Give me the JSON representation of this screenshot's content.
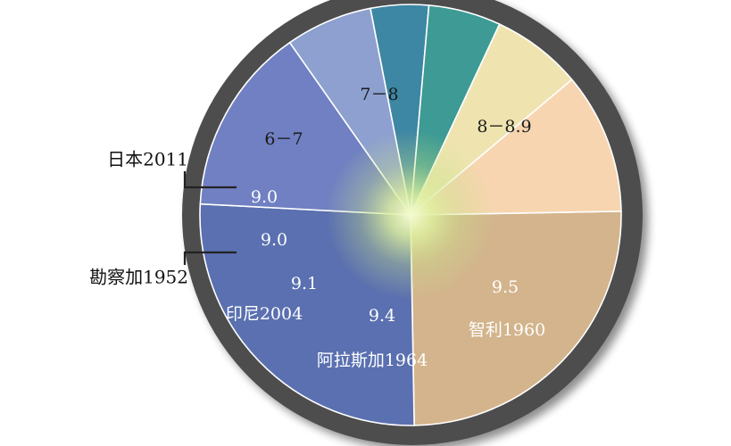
{
  "chart_data": {
    "type": "pie",
    "title": "",
    "slices": [
      {
        "label": "8－8.9",
        "value": 90,
        "color": "#d3b48c",
        "text_color": "dark"
      },
      {
        "label": "9.5",
        "sub_label": "智利1960",
        "value": 94,
        "color": "#5a6fb0",
        "text_color": "white"
      },
      {
        "label": "9.4",
        "sub_label": "阿拉斯加1964",
        "value": 52,
        "color": "#6f80c2",
        "text_color": "white"
      },
      {
        "label": "9.1",
        "sub_label": "印尼2004",
        "value": 24,
        "color": "#8da0cf",
        "text_color": "white"
      },
      {
        "label": "9.0",
        "outside_label": "勘察加1952",
        "value": 16,
        "color": "#3e86a4",
        "text_color": "white"
      },
      {
        "label": "9.0",
        "outside_label": "日本2011",
        "value": 20,
        "color": "#3d9a94",
        "text_color": "white"
      },
      {
        "label": "6－7",
        "value": 25,
        "color": "#efe4b0",
        "text_color": "dark"
      },
      {
        "label": "7－8",
        "value": 39,
        "color": "#f7d5b0",
        "text_color": "dark"
      }
    ]
  }
}
